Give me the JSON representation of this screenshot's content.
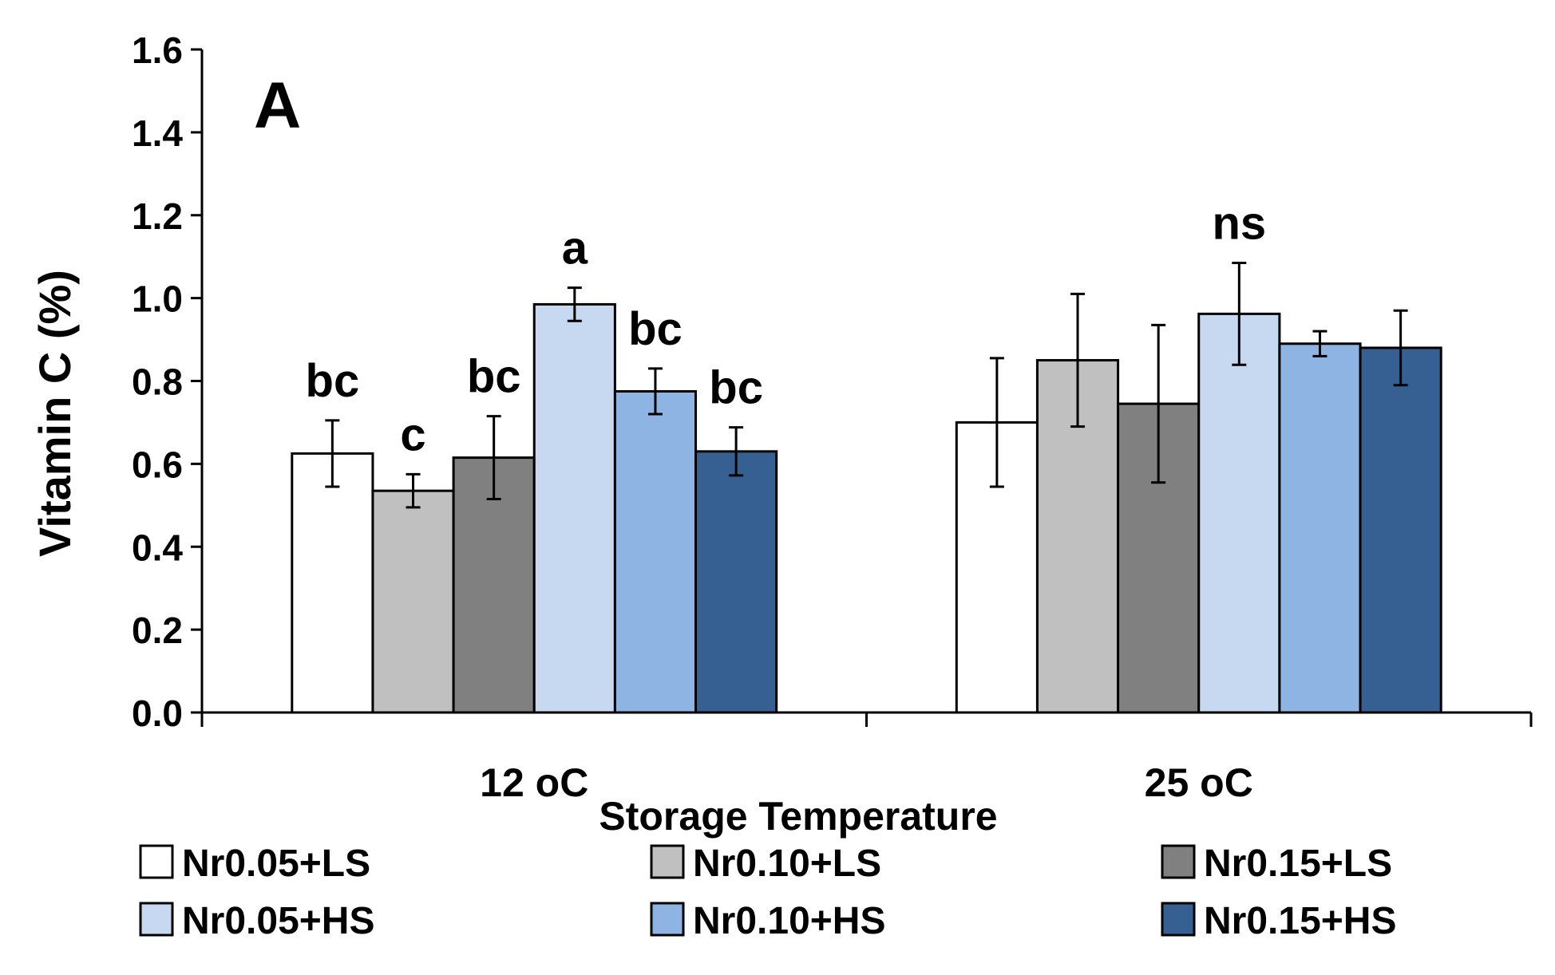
{
  "chart_data": {
    "type": "bar",
    "panel_label": "A",
    "title": "",
    "xlabel": "Storage Temperature",
    "ylabel": "Vitamin C (%)",
    "ylim": [
      0,
      1.6
    ],
    "yticks": [
      "0.0",
      "0.2",
      "0.4",
      "0.6",
      "0.8",
      "1.0",
      "1.2",
      "1.4",
      "1.6"
    ],
    "categories": [
      "12 oC",
      "25 oC"
    ],
    "series": [
      {
        "name": "Nr0.05+LS",
        "color": "#ffffff",
        "values": [
          0.625,
          0.7
        ],
        "errors": [
          0.08,
          0.155
        ]
      },
      {
        "name": "Nr0.10+LS",
        "color": "#c0c0c0",
        "values": [
          0.535,
          0.85
        ],
        "errors": [
          0.04,
          0.16
        ]
      },
      {
        "name": "Nr0.15+LS",
        "color": "#808080",
        "values": [
          0.615,
          0.745
        ],
        "errors": [
          0.1,
          0.19
        ]
      },
      {
        "name": "Nr0.05+HS",
        "color": "#c6d9f1",
        "values": [
          0.985,
          0.962
        ],
        "errors": [
          0.04,
          0.123
        ]
      },
      {
        "name": "Nr0.10+HS",
        "color": "#8eb4e3",
        "values": [
          0.775,
          0.89
        ],
        "errors": [
          0.055,
          0.03
        ]
      },
      {
        "name": "Nr0.15+HS",
        "color": "#376092",
        "values": [
          0.63,
          0.88
        ],
        "errors": [
          0.058,
          0.09
        ]
      }
    ],
    "annotations": [
      {
        "category": 0,
        "series": 0,
        "text": "bc"
      },
      {
        "category": 0,
        "series": 1,
        "text": "c"
      },
      {
        "category": 0,
        "series": 2,
        "text": "bc"
      },
      {
        "category": 0,
        "series": 3,
        "text": "a"
      },
      {
        "category": 0,
        "series": 4,
        "text": "bc"
      },
      {
        "category": 0,
        "series": 5,
        "text": "bc"
      },
      {
        "category": 1,
        "series": 3,
        "text": "ns"
      }
    ],
    "legend_position": "bottom",
    "grid": false
  }
}
